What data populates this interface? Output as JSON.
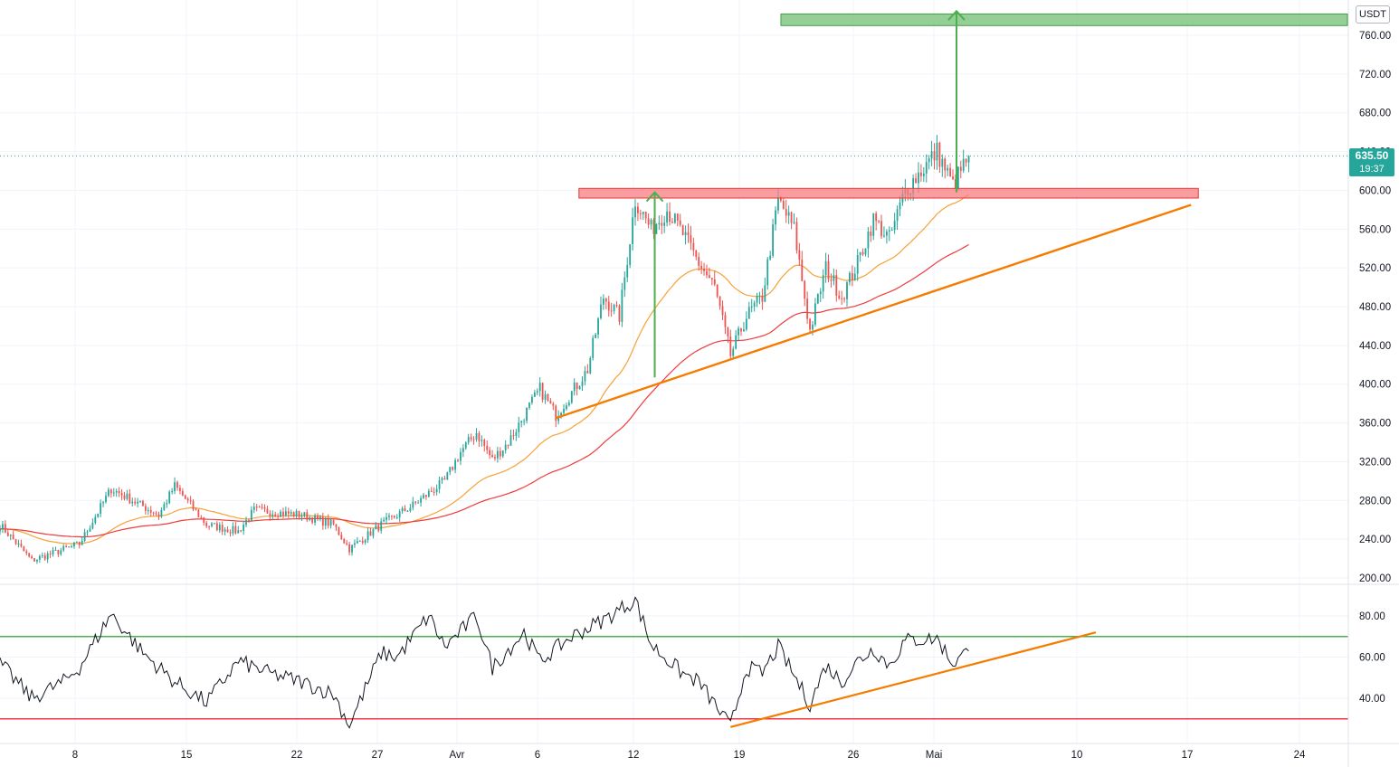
{
  "currency": "USDT",
  "last_price": {
    "price": "635.50",
    "countdown": "19:37",
    "color": "#26a69a"
  },
  "colors": {
    "up": "#26a69a",
    "down": "#ef5350",
    "ema_fast": "#f7a136",
    "ema_slow": "#ef3b3b",
    "trend": "#f57c00",
    "resistance": "#f77c80",
    "target": "#81c784",
    "arrow": "#4caf50",
    "rsi": "#131722",
    "rsi_upper": "#4caf50",
    "rsi_lower": "#f23645"
  },
  "x_ticks": [
    "8",
    "15",
    "22",
    "27",
    "Avr",
    "6",
    "12",
    "19",
    "26",
    "Mai",
    "10",
    "17",
    "24"
  ],
  "chart_data": [
    {
      "type": "candlestick",
      "title": "",
      "interval": "4h",
      "x_range": [
        "Mar 3",
        "May 28"
      ],
      "price_axis": {
        "ticks": [
          "200.00",
          "240.00",
          "280.00",
          "320.00",
          "360.00",
          "400.00",
          "440.00",
          "480.00",
          "520.00",
          "560.00",
          "600.00",
          "640.00",
          "680.00",
          "720.00",
          "760.00"
        ],
        "ylim": [
          195,
          785
        ]
      },
      "anchors": [
        {
          "date": "Mar 3",
          "close": 255
        },
        {
          "date": "Mar 5",
          "close": 218
        },
        {
          "date": "Mar 8",
          "close": 235
        },
        {
          "date": "Mar 10",
          "close": 292
        },
        {
          "date": "Mar 13",
          "close": 265
        },
        {
          "date": "Mar 14",
          "close": 295
        },
        {
          "date": "Mar 16",
          "close": 255
        },
        {
          "date": "Mar 18",
          "close": 248
        },
        {
          "date": "Mar 19",
          "close": 270
        },
        {
          "date": "Mar 22",
          "close": 265
        },
        {
          "date": "Mar 24",
          "close": 255
        },
        {
          "date": "Mar 25",
          "close": 230
        },
        {
          "date": "Mar 27",
          "close": 255
        },
        {
          "date": "Mar 29",
          "close": 275
        },
        {
          "date": "Mar 31",
          "close": 300
        },
        {
          "date": "Apr 1",
          "close": 330
        },
        {
          "date": "Apr 2",
          "close": 350
        },
        {
          "date": "Apr 3",
          "close": 322
        },
        {
          "date": "Apr 4",
          "close": 340
        },
        {
          "date": "Apr 6",
          "close": 395
        },
        {
          "date": "Apr 7",
          "close": 368
        },
        {
          "date": "Apr 9",
          "close": 415
        },
        {
          "date": "Apr 10",
          "close": 490
        },
        {
          "date": "Apr 11",
          "close": 470
        },
        {
          "date": "Apr 12",
          "close": 590
        },
        {
          "date": "Apr 13",
          "close": 560
        },
        {
          "date": "Apr 14",
          "close": 580
        },
        {
          "date": "Apr 15",
          "close": 555
        },
        {
          "date": "Apr 16",
          "close": 525
        },
        {
          "date": "Apr 17",
          "close": 500
        },
        {
          "date": "Apr 18",
          "close": 430
        },
        {
          "date": "Apr 19",
          "close": 470
        },
        {
          "date": "Apr 20",
          "close": 490
        },
        {
          "date": "Apr 21",
          "close": 590
        },
        {
          "date": "Apr 22",
          "close": 560
        },
        {
          "date": "Apr 23",
          "close": 455
        },
        {
          "date": "Apr 24",
          "close": 520
        },
        {
          "date": "Apr 25",
          "close": 490
        },
        {
          "date": "Apr 26",
          "close": 525
        },
        {
          "date": "Apr 27",
          "close": 570
        },
        {
          "date": "Apr 28",
          "close": 550
        },
        {
          "date": "Apr 29",
          "close": 600
        },
        {
          "date": "Apr 30",
          "close": 620
        },
        {
          "date": "May 1",
          "close": 640
        },
        {
          "date": "May 2",
          "close": 605
        },
        {
          "date": "May 3",
          "close": 635.5
        }
      ],
      "overlays": [
        {
          "name": "",
          "kind": "ema_fast",
          "period": 21
        },
        {
          "name": "",
          "kind": "ema_slow",
          "period": 55
        },
        {
          "name": "",
          "kind": "trendline",
          "from": {
            "date": "Apr 7",
            "price": 365
          },
          "to": {
            "date": "May 17",
            "price": 585
          }
        },
        {
          "name": "",
          "kind": "resistance_zone",
          "from": "Apr 8",
          "to": "May 17",
          "price": [
            592,
            602
          ]
        },
        {
          "name": "",
          "kind": "target_zone",
          "from": "Apr 21",
          "to": "May 28",
          "price": [
            770,
            782
          ]
        },
        {
          "name": "",
          "kind": "measured_move",
          "date": "Apr 13",
          "from": 407,
          "to": 598
        },
        {
          "name": "",
          "kind": "measured_move",
          "date": "May 2",
          "from": 598,
          "to": 785
        }
      ]
    },
    {
      "type": "line",
      "title": "",
      "indicator": "RSI",
      "ylim": [
        20,
        92
      ],
      "ticks": [
        "40.00",
        "60.00",
        "80.00"
      ],
      "levels": {
        "upper": 70,
        "lower": 30
      },
      "anchors": [
        {
          "date": "Mar 3",
          "value": 57
        },
        {
          "date": "Mar 5",
          "value": 40
        },
        {
          "date": "Mar 7",
          "value": 48
        },
        {
          "date": "Mar 8",
          "value": 55
        },
        {
          "date": "Mar 10",
          "value": 81
        },
        {
          "date": "Mar 12",
          "value": 62
        },
        {
          "date": "Mar 14",
          "value": 48
        },
        {
          "date": "Mar 16",
          "value": 38
        },
        {
          "date": "Mar 18",
          "value": 58
        },
        {
          "date": "Mar 20",
          "value": 52
        },
        {
          "date": "Mar 22",
          "value": 48
        },
        {
          "date": "Mar 24",
          "value": 42
        },
        {
          "date": "Mar 25",
          "value": 27
        },
        {
          "date": "Mar 27",
          "value": 62
        },
        {
          "date": "Mar 28",
          "value": 60
        },
        {
          "date": "Mar 30",
          "value": 80
        },
        {
          "date": "Mar 31",
          "value": 65
        },
        {
          "date": "Apr 2",
          "value": 80
        },
        {
          "date": "Apr 3",
          "value": 55
        },
        {
          "date": "Apr 5",
          "value": 72
        },
        {
          "date": "Apr 6",
          "value": 58
        },
        {
          "date": "Apr 8",
          "value": 70
        },
        {
          "date": "Apr 10",
          "value": 78
        },
        {
          "date": "Apr 12",
          "value": 88
        },
        {
          "date": "Apr 13",
          "value": 66
        },
        {
          "date": "Apr 15",
          "value": 52
        },
        {
          "date": "Apr 16",
          "value": 48
        },
        {
          "date": "Apr 18",
          "value": 26
        },
        {
          "date": "Apr 19",
          "value": 55
        },
        {
          "date": "Apr 20",
          "value": 52
        },
        {
          "date": "Apr 21",
          "value": 65
        },
        {
          "date": "Apr 23",
          "value": 37
        },
        {
          "date": "Apr 24",
          "value": 56
        },
        {
          "date": "Apr 25",
          "value": 48
        },
        {
          "date": "Apr 26",
          "value": 58
        },
        {
          "date": "Apr 27",
          "value": 64
        },
        {
          "date": "Apr 28",
          "value": 56
        },
        {
          "date": "Apr 29",
          "value": 68
        },
        {
          "date": "May 1",
          "value": 69
        },
        {
          "date": "May 2",
          "value": 57
        },
        {
          "date": "May 3",
          "value": 63
        }
      ],
      "overlays": [
        {
          "name": "",
          "kind": "trendline",
          "from": {
            "date": "Apr 18",
            "value": 26
          },
          "to": {
            "date": "May 11",
            "value": 72
          }
        }
      ]
    }
  ]
}
